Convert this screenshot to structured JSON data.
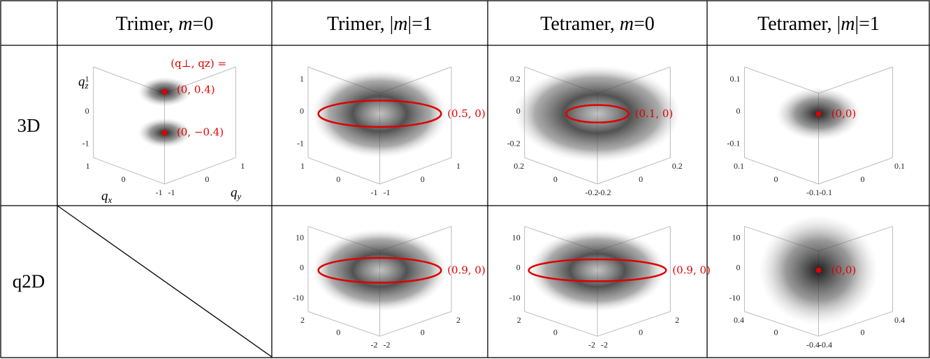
{
  "table": {
    "header": [
      {
        "prefix": "Trimer, ",
        "var": "m",
        "suffix": "=0"
      },
      {
        "prefix": "Trimer, |",
        "var": "m",
        "suffix": "|=1"
      },
      {
        "prefix": "Tetramer, ",
        "var": "m",
        "suffix": "=0"
      },
      {
        "prefix": "Tetramer, |",
        "var": "m",
        "suffix": "|=1"
      }
    ],
    "rows": [
      {
        "label": "3D",
        "cells": [
          {
            "z_ticks": [
              "1",
              "0",
              "-1"
            ],
            "x_ticks": [
              "1",
              "0",
              "-1"
            ],
            "y_ticks": [
              "-1",
              "0",
              "1"
            ],
            "axis_labels": [
              {
                "symbol": "q",
                "subscript": "z"
              },
              {
                "symbol": "q",
                "subscript": "x"
              },
              {
                "symbol": "q",
                "subscript": "y"
              }
            ],
            "annotations": [
              "(q⊥, qz) =",
              "(0, 0.4)",
              "(0, −0.4)"
            ]
          },
          {
            "z_ticks": [
              "1",
              "0",
              "-1"
            ],
            "x_ticks": [
              "1",
              "0",
              "-1"
            ],
            "y_ticks": [
              "-1",
              "0",
              "1"
            ],
            "annotations": [
              "(0.5, 0)"
            ]
          },
          {
            "z_ticks": [
              "0.2",
              "0",
              "-0.2"
            ],
            "x_ticks": [
              "0.2",
              "0",
              "-0.2"
            ],
            "y_ticks": [
              "-0.2",
              "0",
              "0.2"
            ],
            "annotations": [
              "(0.1, 0)"
            ]
          },
          {
            "z_ticks": [
              "0.1",
              "0",
              "-0.1"
            ],
            "x_ticks": [
              "0.1",
              "0",
              "-0.1"
            ],
            "y_ticks": [
              "-0.1",
              "0",
              "0.1"
            ],
            "annotations": [
              "(0,0)"
            ]
          }
        ]
      },
      {
        "label": "q2D",
        "cells": [
          {
            "z_ticks": [
              "10",
              "0",
              "-10"
            ],
            "x_ticks": [
              "2",
              "0",
              "-2"
            ],
            "y_ticks": [
              "-2",
              "0",
              "2"
            ],
            "annotations": [
              "(0.9, 0)"
            ]
          },
          {
            "z_ticks": [
              "10",
              "0",
              "-10"
            ],
            "x_ticks": [
              "2",
              "0",
              "-2"
            ],
            "y_ticks": [
              "-2",
              "0",
              "2"
            ],
            "annotations": [
              "(0.9, 0)"
            ]
          },
          {
            "z_ticks": [
              "10",
              "0",
              "-10"
            ],
            "x_ticks": [
              "0.4",
              "0",
              "-0.4"
            ],
            "y_ticks": [
              "-0.4",
              "0",
              "0.4"
            ],
            "annotations": [
              "(0,0)"
            ]
          }
        ]
      }
    ]
  }
}
